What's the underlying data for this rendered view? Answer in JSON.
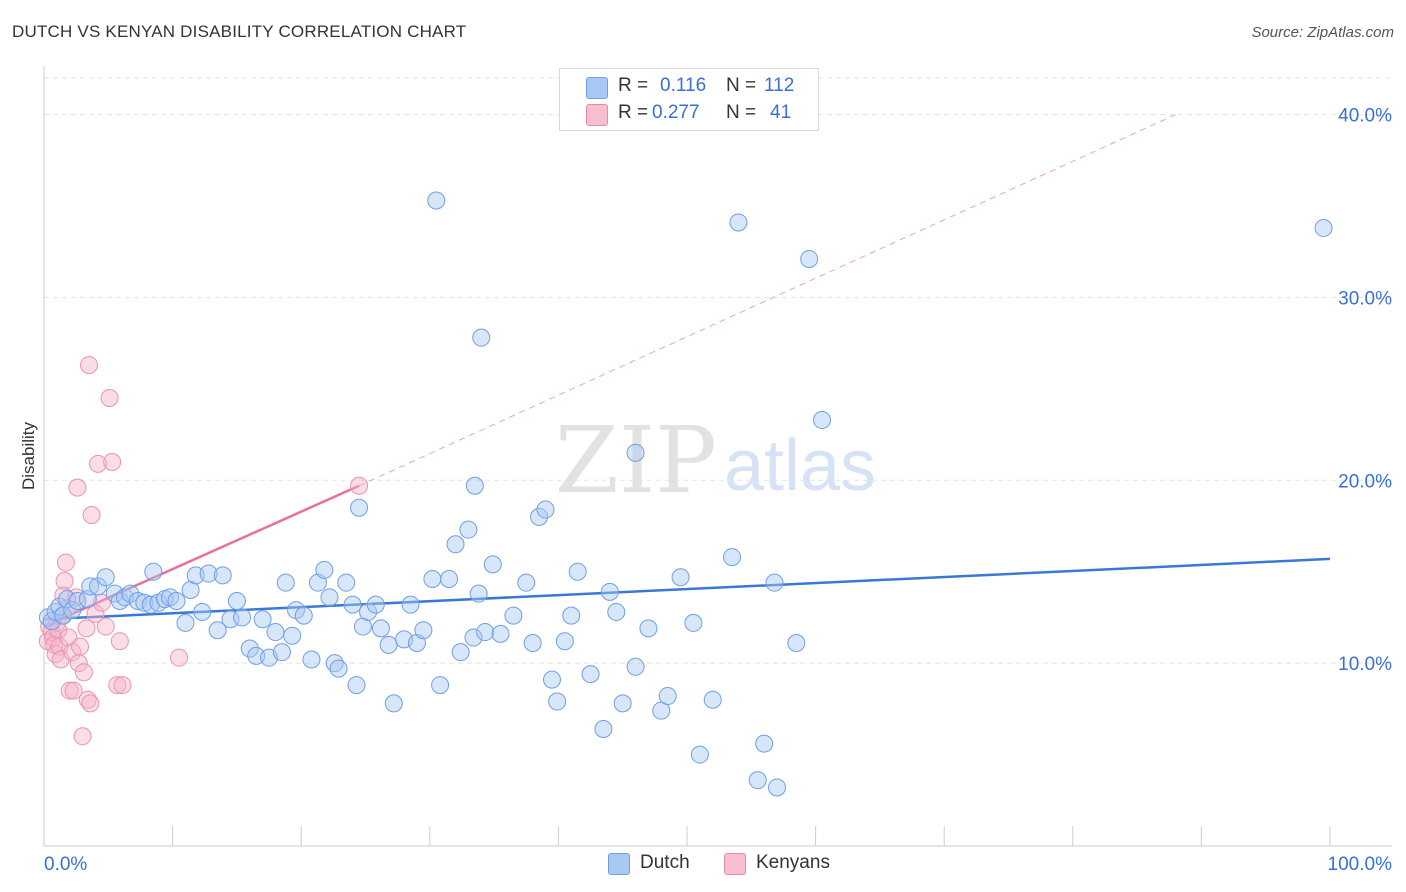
{
  "header": {
    "title": "DUTCH VS KENYAN DISABILITY CORRELATION CHART",
    "source": "Source: ZipAtlas.com"
  },
  "watermark": {
    "zip": "ZIP",
    "atlas": "atlas"
  },
  "stats_legend": {
    "rows": [
      {
        "r_label": "R =",
        "r_value": "0.116",
        "n_label": "N =",
        "n_value": "112",
        "color": "#a9c8f3",
        "border": "#6f9fe6"
      },
      {
        "r_label": "R =",
        "r_value": "0.277",
        "n_label": "N =",
        "n_value": "41",
        "color": "#f7bfd0",
        "border": "#ea8aa9"
      }
    ]
  },
  "bottom_legend": [
    {
      "label": "Dutch",
      "color": "#a9c8f3",
      "border": "#6f9fe6"
    },
    {
      "label": "Kenyans",
      "color": "#f7bfd0",
      "border": "#ea8aa9"
    }
  ],
  "chart_data": {
    "type": "scatter",
    "title": "DUTCH VS KENYAN DISABILITY CORRELATION CHART",
    "xlabel": "",
    "ylabel": "Disability",
    "xlim": [
      0,
      100
    ],
    "ylim": [
      0,
      42
    ],
    "x_tick_labels": {
      "min": "0.0%",
      "max": "100.0%"
    },
    "y_ticks": [
      {
        "value": 10,
        "label": "10.0%"
      },
      {
        "value": 20,
        "label": "20.0%"
      },
      {
        "value": 30,
        "label": "30.0%"
      },
      {
        "value": 40,
        "label": "40.0%"
      }
    ],
    "grid": true,
    "colors": {
      "dutch": "#3a78d6",
      "kenyans": "#e8709a",
      "axis_label": "#3a6fd8"
    },
    "series": [
      {
        "name": "Dutch",
        "trend": {
          "x1": 0,
          "y1": 12.4,
          "x2": 100,
          "y2": 15.7
        },
        "points": [
          [
            0.3,
            12.5
          ],
          [
            0.6,
            12.3
          ],
          [
            0.9,
            12.8
          ],
          [
            1.2,
            13.1
          ],
          [
            1.5,
            12.6
          ],
          [
            1.8,
            13.5
          ],
          [
            2.2,
            12.9
          ],
          [
            2.6,
            13.4
          ],
          [
            3.4,
            13.5
          ],
          [
            3.6,
            14.2
          ],
          [
            4.2,
            14.2
          ],
          [
            4.8,
            14.7
          ],
          [
            5.5,
            13.8
          ],
          [
            5.9,
            13.4
          ],
          [
            6.3,
            13.6
          ],
          [
            6.7,
            13.8
          ],
          [
            7.3,
            13.4
          ],
          [
            7.8,
            13.3
          ],
          [
            8.3,
            13.2
          ],
          [
            8.5,
            15.0
          ],
          [
            8.9,
            13.3
          ],
          [
            9.4,
            13.5
          ],
          [
            9.8,
            13.6
          ],
          [
            10.3,
            13.4
          ],
          [
            11.0,
            12.2
          ],
          [
            11.4,
            14.0
          ],
          [
            11.8,
            14.8
          ],
          [
            12.3,
            12.8
          ],
          [
            12.8,
            14.9
          ],
          [
            13.5,
            11.8
          ],
          [
            13.9,
            14.8
          ],
          [
            14.5,
            12.4
          ],
          [
            15.0,
            13.4
          ],
          [
            15.4,
            12.5
          ],
          [
            16.0,
            10.8
          ],
          [
            16.5,
            10.4
          ],
          [
            17.0,
            12.4
          ],
          [
            17.5,
            10.3
          ],
          [
            18.0,
            11.7
          ],
          [
            18.5,
            10.6
          ],
          [
            18.8,
            14.4
          ],
          [
            19.3,
            11.5
          ],
          [
            19.6,
            12.9
          ],
          [
            20.2,
            12.6
          ],
          [
            20.8,
            10.2
          ],
          [
            21.3,
            14.4
          ],
          [
            21.8,
            15.1
          ],
          [
            22.2,
            13.6
          ],
          [
            22.6,
            10.0
          ],
          [
            22.9,
            9.7
          ],
          [
            23.5,
            14.4
          ],
          [
            24.0,
            13.2
          ],
          [
            24.3,
            8.8
          ],
          [
            24.8,
            12.0
          ],
          [
            25.2,
            12.8
          ],
          [
            25.8,
            13.2
          ],
          [
            26.2,
            11.9
          ],
          [
            26.8,
            11.0
          ],
          [
            27.2,
            7.8
          ],
          [
            28.0,
            11.3
          ],
          [
            28.5,
            13.2
          ],
          [
            29.0,
            11.1
          ],
          [
            29.5,
            11.8
          ],
          [
            30.2,
            14.6
          ],
          [
            30.8,
            8.8
          ],
          [
            31.5,
            14.6
          ],
          [
            32.0,
            16.5
          ],
          [
            32.4,
            10.6
          ],
          [
            33.0,
            17.3
          ],
          [
            33.4,
            11.4
          ],
          [
            33.8,
            13.8
          ],
          [
            34.3,
            11.7
          ],
          [
            34.9,
            15.4
          ],
          [
            35.5,
            11.6
          ],
          [
            36.5,
            12.6
          ],
          [
            37.5,
            14.4
          ],
          [
            38.0,
            11.1
          ],
          [
            38.5,
            18.0
          ],
          [
            39.0,
            18.4
          ],
          [
            39.5,
            9.1
          ],
          [
            39.9,
            7.9
          ],
          [
            40.5,
            11.2
          ],
          [
            41.0,
            12.6
          ],
          [
            41.5,
            15.0
          ],
          [
            42.5,
            9.4
          ],
          [
            43.5,
            6.4
          ],
          [
            44.0,
            13.9
          ],
          [
            44.5,
            12.8
          ],
          [
            45.0,
            7.8
          ],
          [
            46.0,
            9.8
          ],
          [
            47.0,
            11.9
          ],
          [
            48.0,
            7.4
          ],
          [
            48.5,
            8.2
          ],
          [
            49.5,
            14.7
          ],
          [
            50.5,
            12.2
          ],
          [
            51.0,
            5.0
          ],
          [
            52.0,
            8.0
          ],
          [
            53.5,
            15.8
          ],
          [
            55.5,
            3.6
          ],
          [
            56.0,
            5.6
          ],
          [
            57.0,
            3.2
          ],
          [
            58.5,
            11.1
          ],
          [
            60.5,
            23.3
          ],
          [
            33.5,
            19.7
          ],
          [
            30.5,
            35.3
          ],
          [
            34.0,
            27.8
          ],
          [
            54.0,
            34.1
          ],
          [
            59.5,
            32.1
          ],
          [
            99.5,
            33.8
          ],
          [
            24.5,
            18.5
          ],
          [
            46.0,
            21.5
          ],
          [
            56.8,
            14.4
          ]
        ]
      },
      {
        "name": "Kenyans",
        "trend": {
          "x1": 0,
          "y1": 12.0,
          "x2": 24.5,
          "y2": 19.7
        },
        "trend_extended": {
          "x1": 24.5,
          "y1": 19.7,
          "x2": 88.0,
          "y2": 40.0
        },
        "points": [
          [
            0.3,
            11.2
          ],
          [
            0.4,
            12.0
          ],
          [
            0.6,
            11.7
          ],
          [
            0.7,
            11.4
          ],
          [
            0.8,
            11.0
          ],
          [
            0.9,
            10.5
          ],
          [
            1.0,
            12.2
          ],
          [
            1.1,
            11.8
          ],
          [
            1.2,
            10.9
          ],
          [
            1.3,
            10.2
          ],
          [
            1.4,
            12.6
          ],
          [
            1.5,
            13.7
          ],
          [
            1.6,
            14.5
          ],
          [
            1.7,
            15.5
          ],
          [
            1.8,
            13.0
          ],
          [
            1.9,
            11.4
          ],
          [
            2.0,
            8.5
          ],
          [
            2.2,
            10.6
          ],
          [
            2.3,
            8.5
          ],
          [
            2.5,
            13.6
          ],
          [
            2.7,
            10.0
          ],
          [
            2.8,
            10.9
          ],
          [
            3.0,
            6.0
          ],
          [
            3.1,
            9.5
          ],
          [
            3.3,
            11.9
          ],
          [
            3.4,
            8.0
          ],
          [
            3.6,
            7.8
          ],
          [
            3.7,
            18.1
          ],
          [
            4.0,
            12.7
          ],
          [
            4.2,
            20.9
          ],
          [
            4.5,
            13.3
          ],
          [
            4.8,
            12.0
          ],
          [
            5.1,
            24.5
          ],
          [
            5.3,
            21.0
          ],
          [
            5.7,
            8.8
          ],
          [
            5.9,
            11.2
          ],
          [
            6.1,
            8.8
          ],
          [
            3.5,
            26.3
          ],
          [
            2.6,
            19.6
          ],
          [
            10.5,
            10.3
          ],
          [
            24.5,
            19.7
          ]
        ]
      }
    ]
  }
}
